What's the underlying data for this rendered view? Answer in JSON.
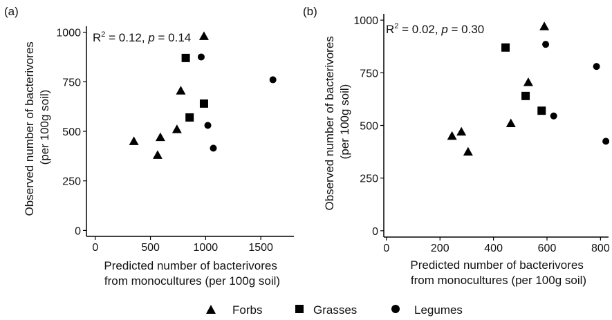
{
  "legend": {
    "items": [
      {
        "label": "Forbs",
        "marker": "triangle"
      },
      {
        "label": "Grasses",
        "marker": "square"
      },
      {
        "label": "Legumes",
        "marker": "circle"
      }
    ]
  },
  "chart_data": [
    {
      "type": "scatter",
      "panel_label": "(a)",
      "annotation": {
        "r2_prefix": "R",
        "r2_sup": "2",
        "r2_value": " = 0.12, ",
        "p_symbol": "p",
        "p_value": " = 0.14"
      },
      "xlabel_lines": [
        "Predicted number of bacterivores",
        "from monocultures (per 100g soil)"
      ],
      "ylabel_lines": [
        "Observed number of bacterivores",
        "(per 100g soil)"
      ],
      "xlim": [
        -80,
        1800
      ],
      "ylim": [
        -30,
        1030
      ],
      "xticks": [
        0,
        500,
        1000,
        1500
      ],
      "yticks": [
        0,
        250,
        500,
        750,
        1000
      ],
      "color": "#000000",
      "series": [
        {
          "name": "Forbs",
          "marker": "triangle",
          "points": [
            [
              350,
              450
            ],
            [
              565,
              380
            ],
            [
              590,
              470
            ],
            [
              740,
              510
            ],
            [
              775,
              705
            ],
            [
              985,
              980
            ]
          ]
        },
        {
          "name": "Grasses",
          "marker": "square",
          "points": [
            [
              820,
              870
            ],
            [
              855,
              570
            ],
            [
              985,
              640
            ]
          ]
        },
        {
          "name": "Legumes",
          "marker": "circle",
          "points": [
            [
              960,
              875
            ],
            [
              1020,
              530
            ],
            [
              1070,
              415
            ],
            [
              1610,
              760
            ]
          ]
        }
      ]
    },
    {
      "type": "scatter",
      "panel_label": "(b)",
      "annotation": {
        "r2_prefix": "R",
        "r2_sup": "2",
        "r2_value": " = 0.02, ",
        "p_symbol": "p",
        "p_value": " = 0.30"
      },
      "xlabel_lines": [
        "Predicted number of bacterivores",
        "from monocultures (per 100g soil)"
      ],
      "ylabel_lines": [
        "Observed number of bacterivores",
        "(per 100g soil)"
      ],
      "xlim": [
        -10,
        830
      ],
      "ylim": [
        -30,
        1030
      ],
      "xticks": [
        0,
        200,
        400,
        600,
        800
      ],
      "yticks": [
        0,
        250,
        500,
        750,
        1000
      ],
      "color": "#000000",
      "series": [
        {
          "name": "Forbs",
          "marker": "triangle",
          "points": [
            [
              245,
              450
            ],
            [
              280,
              470
            ],
            [
              305,
              375
            ],
            [
              465,
              510
            ],
            [
              530,
              705
            ],
            [
              590,
              970
            ]
          ]
        },
        {
          "name": "Grasses",
          "marker": "square",
          "points": [
            [
              445,
              870
            ],
            [
              520,
              640
            ],
            [
              580,
              570
            ]
          ]
        },
        {
          "name": "Legumes",
          "marker": "circle",
          "points": [
            [
              595,
              885
            ],
            [
              625,
              545
            ],
            [
              785,
              780
            ],
            [
              820,
              425
            ]
          ]
        }
      ]
    }
  ]
}
